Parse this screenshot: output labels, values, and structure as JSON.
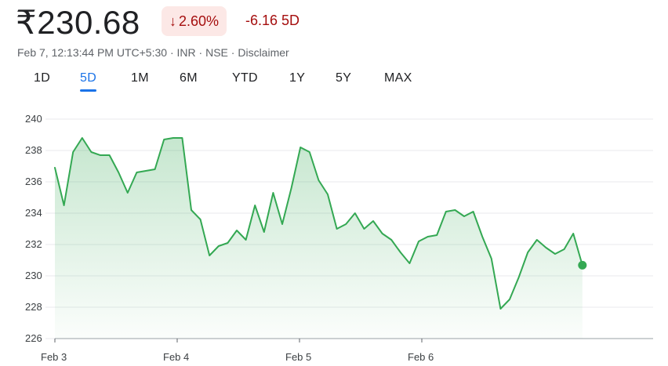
{
  "quote": {
    "price": "₹230.68",
    "change_percent": "2.60%",
    "change_arrow": "↓",
    "change_abs": "-6.16 5D",
    "timestamp": "Feb 7, 12:13:44 PM UTC+5:30",
    "currency": "INR",
    "exchange": "NSE",
    "disclaimer": "Disclaimer",
    "separator": "·"
  },
  "ranges": [
    {
      "label": "1D",
      "active": false
    },
    {
      "label": "5D",
      "active": true
    },
    {
      "label": "1M",
      "active": false
    },
    {
      "label": "6M",
      "active": false
    },
    {
      "label": "YTD",
      "active": false
    },
    {
      "label": "1Y",
      "active": false
    },
    {
      "label": "5Y",
      "active": false
    },
    {
      "label": "MAX",
      "active": false
    }
  ],
  "colors": {
    "line": "#34a853",
    "negative": "#a50e0e",
    "accent": "#1a73e8",
    "grid": "#e8eaed"
  },
  "chart_data": {
    "type": "area",
    "title": "",
    "xlabel": "",
    "ylabel": "",
    "ylim": [
      226,
      240
    ],
    "yticks": [
      240,
      238,
      236,
      234,
      232,
      230,
      228,
      226
    ],
    "xtick_labels": [
      "Feb 3",
      "Feb 4",
      "Feb 5",
      "Feb 6"
    ],
    "grid": true,
    "series": [
      {
        "values": [
          236.9,
          234.5,
          237.9,
          238.8,
          237.9,
          237.7,
          237.7,
          236.6,
          235.3,
          236.6,
          236.7,
          236.8,
          238.7,
          238.8,
          238.8,
          234.2,
          233.6,
          231.3,
          231.9,
          232.1,
          232.9,
          232.3,
          234.5,
          232.8,
          235.3,
          233.3,
          235.6,
          238.2,
          237.9,
          236.1,
          235.2,
          233.0,
          233.3,
          234.0,
          233.0,
          233.5,
          232.7,
          232.3,
          231.5,
          230.8,
          232.2,
          232.5,
          232.6,
          234.1,
          234.2,
          233.8,
          234.1,
          232.5,
          231.1,
          227.9,
          228.5,
          229.9,
          231.5,
          232.3,
          231.8,
          231.4,
          231.7,
          232.7,
          230.68
        ]
      }
    ]
  }
}
